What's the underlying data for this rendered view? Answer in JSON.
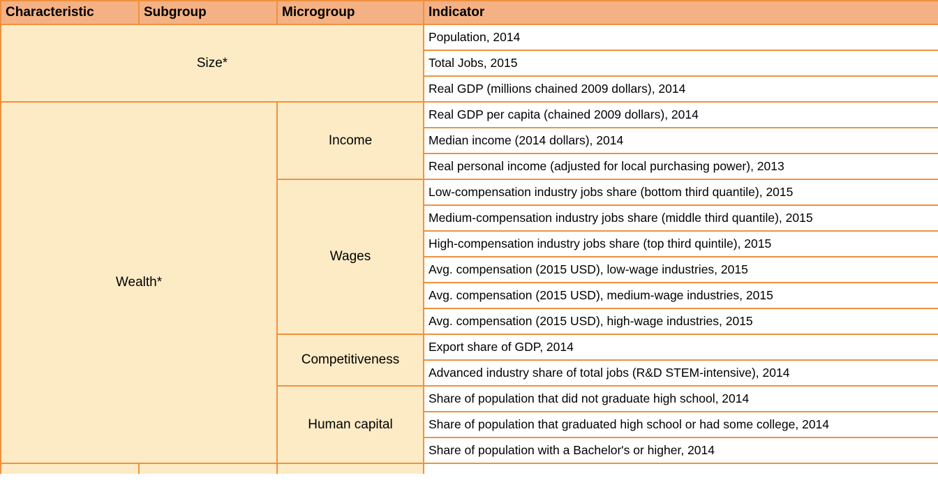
{
  "headers": {
    "characteristic": "Characteristic",
    "subgroup": "Subgroup",
    "microgroup": "Microgroup",
    "indicator": "Indicator"
  },
  "size": {
    "label": "Size*",
    "indicators": [
      "Population, 2014",
      "Total Jobs, 2015",
      "Real GDP (millions chained 2009 dollars), 2014"
    ]
  },
  "wealth": {
    "label": "Wealth*",
    "microgroups": [
      {
        "name": "Income",
        "indicators": [
          "Real GDP per capita (chained 2009 dollars), 2014",
          "Median income (2014 dollars), 2014",
          "Real personal income (adjusted for local purchasing power), 2013"
        ]
      },
      {
        "name": "Wages",
        "indicators": [
          "Low-compensation industry jobs share (bottom third quantile), 2015",
          "Medium-compensation industry jobs share (middle third quantile), 2015",
          "High-compensation industry jobs share (top third quintile), 2015",
          "Avg. compensation (2015 USD), low-wage industries, 2015",
          "Avg. compensation (2015 USD), medium-wage industries, 2015",
          "Avg. compensation (2015 USD), high-wage industries, 2015"
        ]
      },
      {
        "name": "Competitiveness",
        "indicators": [
          "Export share of GDP, 2014",
          "Advanced industry share of total jobs (R&D STEM-intensive), 2014"
        ]
      },
      {
        "name": "Human capital",
        "indicators": [
          "Share of population that did not graduate high school, 2014",
          "Share of population that graduated high school or had some college, 2014",
          "Share of population with a Bachelor's or higher, 2014"
        ]
      }
    ]
  },
  "colors": {
    "header_bg": "#f4b183",
    "group_bg": "#fdebc5",
    "border": "#f0913f"
  }
}
